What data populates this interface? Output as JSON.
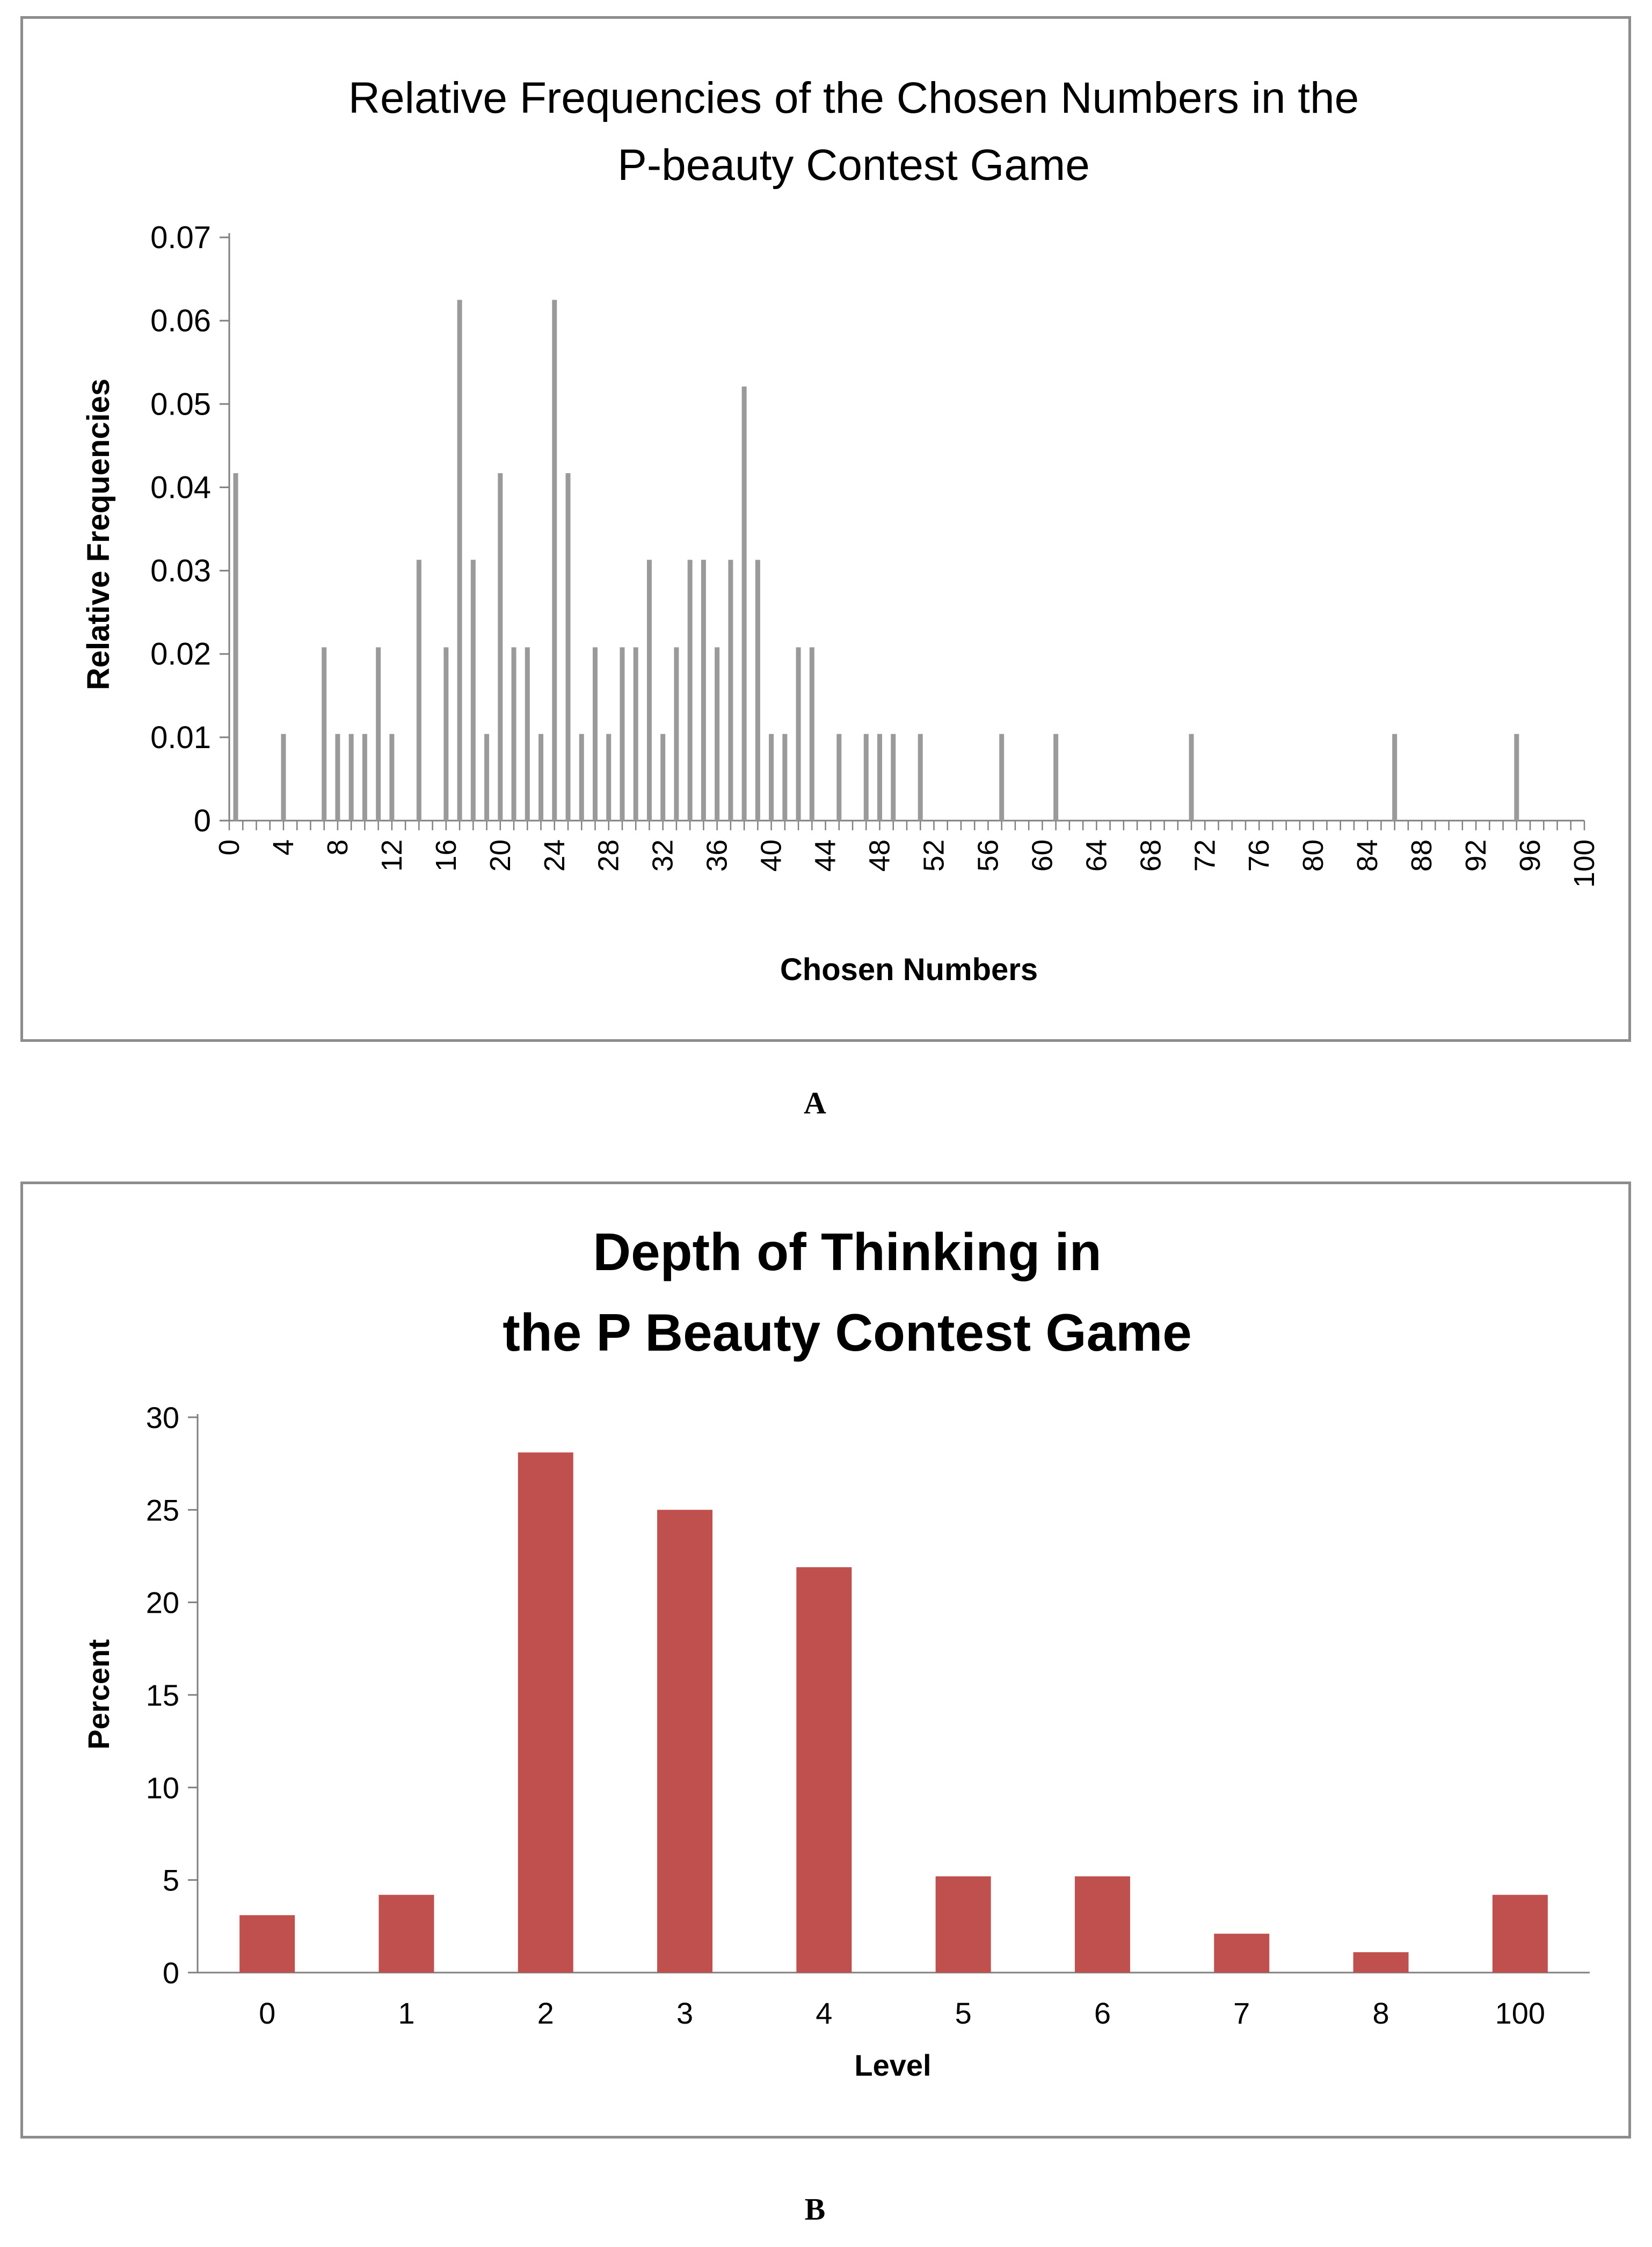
{
  "panels": {
    "a": {
      "letter": "A"
    },
    "b": {
      "letter": "B"
    }
  },
  "chart_data": [
    {
      "type": "bar",
      "title_line1": "Relative Frequencies of the Chosen  Numbers in the",
      "title_line2": "P-beauty Contest Game",
      "xlabel": "Chosen Numbers",
      "ylabel": "Relative Frequencies",
      "xlim": [
        0,
        100
      ],
      "ylim": [
        0,
        0.07
      ],
      "yticks": [
        "0",
        "0.01",
        "0.02",
        "0.03",
        "0.04",
        "0.05",
        "0.06",
        "0.07"
      ],
      "xticks": [
        "0",
        "4",
        "8",
        "12",
        "16",
        "20",
        "24",
        "28",
        "32",
        "36",
        "40",
        "44",
        "48",
        "52",
        "56",
        "60",
        "64",
        "68",
        "72",
        "76",
        "80",
        "84",
        "88",
        "92",
        "96",
        "100"
      ],
      "bar_color": "#9a9a9a",
      "x": [
        0,
        4,
        7,
        8,
        9,
        10,
        11,
        12,
        14,
        16,
        17,
        18,
        19,
        20,
        21,
        22,
        23,
        24,
        25,
        26,
        27,
        28,
        29,
        30,
        31,
        32,
        33,
        34,
        35,
        36,
        37,
        38,
        39,
        40,
        41,
        42,
        43,
        45,
        47,
        48,
        49,
        51,
        57,
        61,
        71,
        86,
        95
      ],
      "values": [
        0.0417,
        0.0104,
        0.0208,
        0.0104,
        0.0104,
        0.0104,
        0.0208,
        0.0104,
        0.0313,
        0.0208,
        0.0625,
        0.0313,
        0.0104,
        0.0417,
        0.0208,
        0.0208,
        0.0104,
        0.0625,
        0.0417,
        0.0104,
        0.0208,
        0.0104,
        0.0208,
        0.0208,
        0.0313,
        0.0104,
        0.0208,
        0.0313,
        0.0313,
        0.0208,
        0.0313,
        0.0521,
        0.0313,
        0.0104,
        0.0104,
        0.0208,
        0.0208,
        0.0104,
        0.0104,
        0.0104,
        0.0104,
        0.0104,
        0.0104,
        0.0104,
        0.0104,
        0.0104,
        0.0104
      ]
    },
    {
      "type": "bar",
      "title_line1": "Depth of Thinking in",
      "title_line2": "the P Beauty Contest Game",
      "xlabel": "Level",
      "ylabel": "Percent",
      "ylim": [
        0,
        30
      ],
      "yticks": [
        "0",
        "5",
        "10",
        "15",
        "20",
        "25",
        "30"
      ],
      "categories": [
        "0",
        "1",
        "2",
        "3",
        "4",
        "5",
        "6",
        "7",
        "8",
        "100"
      ],
      "values": [
        3.1,
        4.2,
        28.1,
        25,
        21.9,
        5.2,
        5.2,
        2.1,
        1.1,
        4.2
      ],
      "bar_color": "#c0504d"
    }
  ]
}
